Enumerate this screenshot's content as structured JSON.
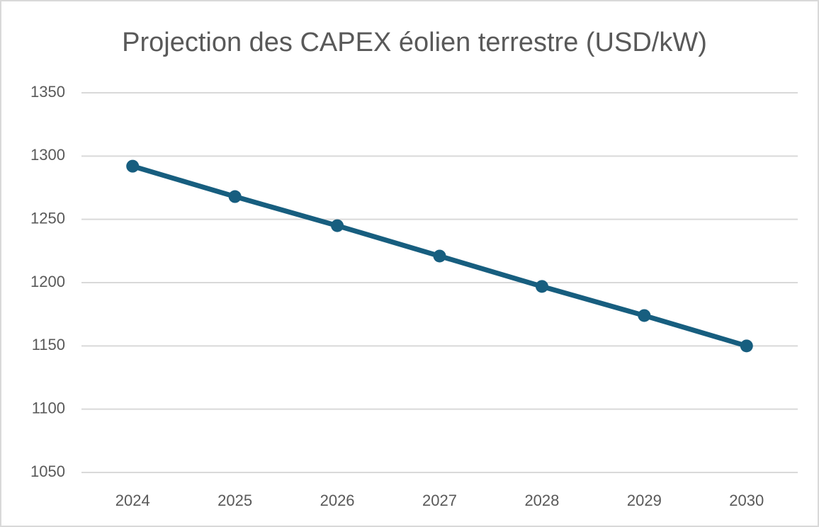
{
  "chart_data": {
    "type": "line",
    "title": "Projection des CAPEX éolien terrestre (USD/kW)",
    "categories": [
      "2024",
      "2025",
      "2026",
      "2027",
      "2028",
      "2029",
      "2030"
    ],
    "series": [
      {
        "name": "CAPEX",
        "color": "#175e7f",
        "values": [
          1292,
          1268,
          1245,
          1221,
          1197,
          1174,
          1150
        ]
      }
    ],
    "ylim": [
      1050,
      1350
    ],
    "yticks": [
      1050,
      1100,
      1150,
      1200,
      1250,
      1300,
      1350
    ],
    "grid": true
  }
}
